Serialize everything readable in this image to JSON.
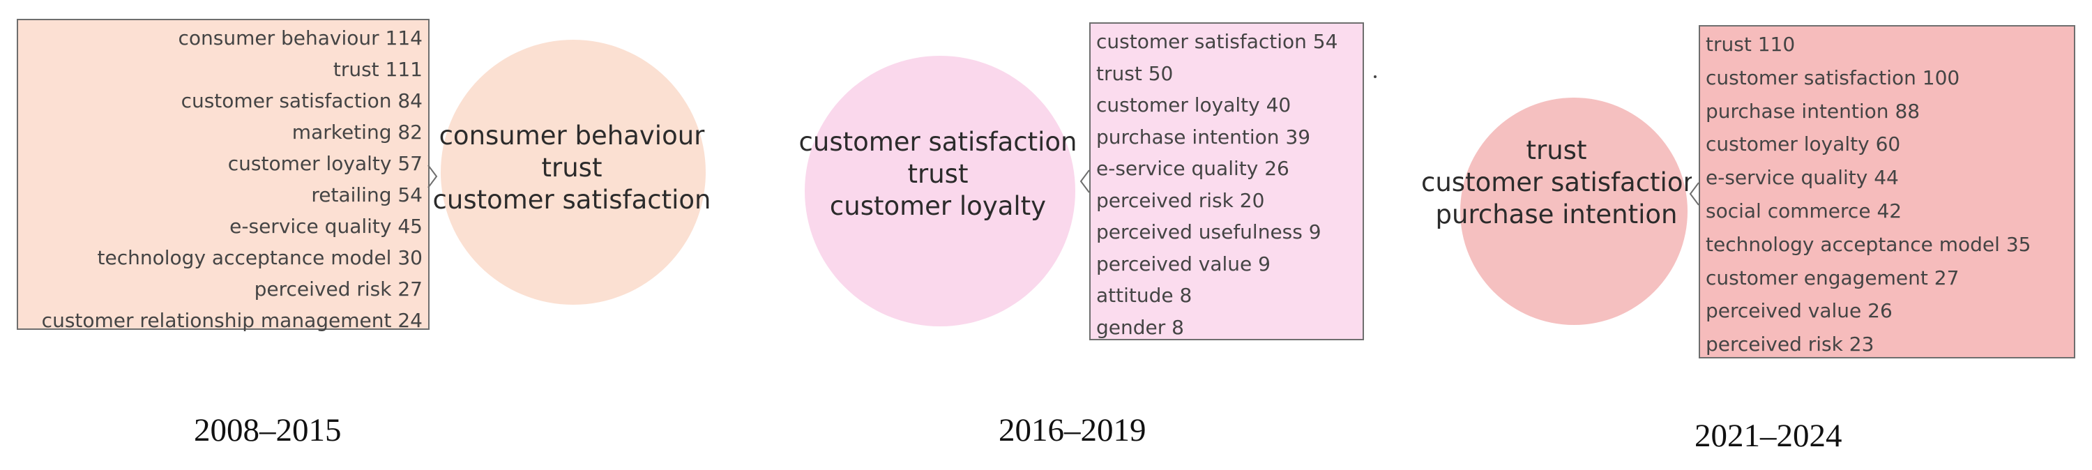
{
  "panels": [
    {
      "period": "2008–2015",
      "fill": "#fce0d3",
      "circle_fill": "#fbe0d2",
      "circle_terms": [
        "consumer behaviour",
        "trust",
        "customer satisfaction"
      ],
      "keywords": [
        {
          "term": "consumer behaviour",
          "count": 114
        },
        {
          "term": "trust",
          "count": 111
        },
        {
          "term": "customer satisfaction",
          "count": 84
        },
        {
          "term": "marketing",
          "count": 82
        },
        {
          "term": "customer loyalty",
          "count": 57
        },
        {
          "term": "retailing",
          "count": 54
        },
        {
          "term": "e-service quality",
          "count": 45
        },
        {
          "term": "technology acceptance model",
          "count": 30
        },
        {
          "term": "perceived risk",
          "count": 27
        },
        {
          "term": "customer relationship management",
          "count": 24
        }
      ]
    },
    {
      "period": "2016–2019",
      "fill": "#fbdcee",
      "circle_fill": "#fad8ec",
      "circle_terms": [
        "customer satisfaction",
        "trust",
        "customer loyalty"
      ],
      "keywords": [
        {
          "term": "customer satisfaction",
          "count": 54
        },
        {
          "term": "trust",
          "count": 50
        },
        {
          "term": "customer loyalty",
          "count": 40
        },
        {
          "term": "purchase intention",
          "count": 39
        },
        {
          "term": "e-service quality",
          "count": 26
        },
        {
          "term": "perceived risk",
          "count": 20
        },
        {
          "term": "perceived usefulness",
          "count": 9
        },
        {
          "term": "perceived value",
          "count": 9
        },
        {
          "term": "attitude",
          "count": 8
        },
        {
          "term": "gender",
          "count": 8
        }
      ]
    },
    {
      "period": "2021–2024",
      "fill": "#f6bcbc",
      "circle_fill": "#f5c0c0",
      "circle_terms": [
        "trust",
        "customer satisfaction",
        "purchase intention"
      ],
      "keywords": [
        {
          "term": "trust",
          "count": 110
        },
        {
          "term": "customer satisfaction",
          "count": 100
        },
        {
          "term": "purchase intention",
          "count": 88
        },
        {
          "term": "customer loyalty",
          "count": 60
        },
        {
          "term": "e-service quality",
          "count": 44
        },
        {
          "term": "social commerce",
          "count": 42
        },
        {
          "term": "technology acceptance model",
          "count": 35
        },
        {
          "term": "customer engagement",
          "count": 27
        },
        {
          "term": "perceived value",
          "count": 26
        },
        {
          "term": "perceived risk",
          "count": 23
        }
      ]
    }
  ]
}
